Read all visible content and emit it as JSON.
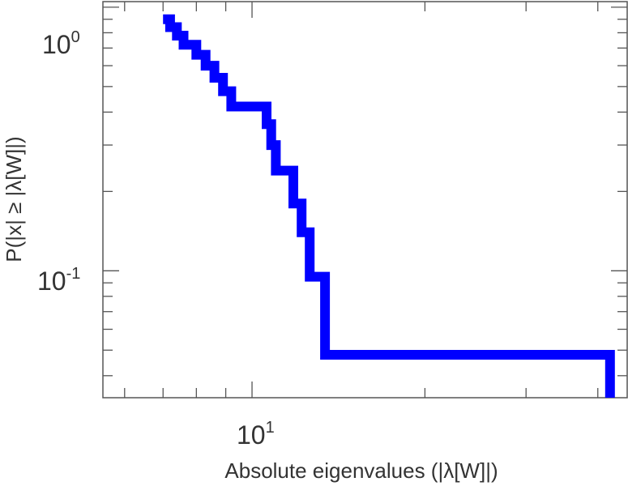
{
  "chart_data": {
    "type": "line",
    "style": "step",
    "xlabel": "Absolute eigenvalues (|λ[W]|)",
    "ylabel": "P(|x| ≥ |λ[W]|)",
    "xscale": "log",
    "yscale": "log",
    "xlim": [
      5.5,
      45
    ],
    "ylim": [
      0.033,
      1.05
    ],
    "grid": false,
    "legend": "none",
    "x_ticks": [
      {
        "base": "10",
        "exp": "1",
        "value": 10
      }
    ],
    "y_ticks": [
      {
        "base": "10",
        "exp": "0",
        "value": 1
      },
      {
        "base": "10",
        "exp": "-1",
        "value": 0.1
      }
    ],
    "series": [
      {
        "color": "#0000ff",
        "x": [
          7.0,
          7.2,
          7.4,
          7.6,
          8.0,
          8.3,
          8.6,
          8.9,
          9.2,
          10.6,
          10.8,
          11.0,
          11.8,
          12.2,
          12.6,
          13.4,
          14.6,
          42.0
        ],
        "y": [
          0.9,
          0.84,
          0.78,
          0.72,
          0.66,
          0.6,
          0.54,
          0.48,
          0.42,
          0.36,
          0.3,
          0.24,
          0.18,
          0.14,
          0.095,
          0.048,
          0.048,
          0.035
        ]
      }
    ]
  }
}
